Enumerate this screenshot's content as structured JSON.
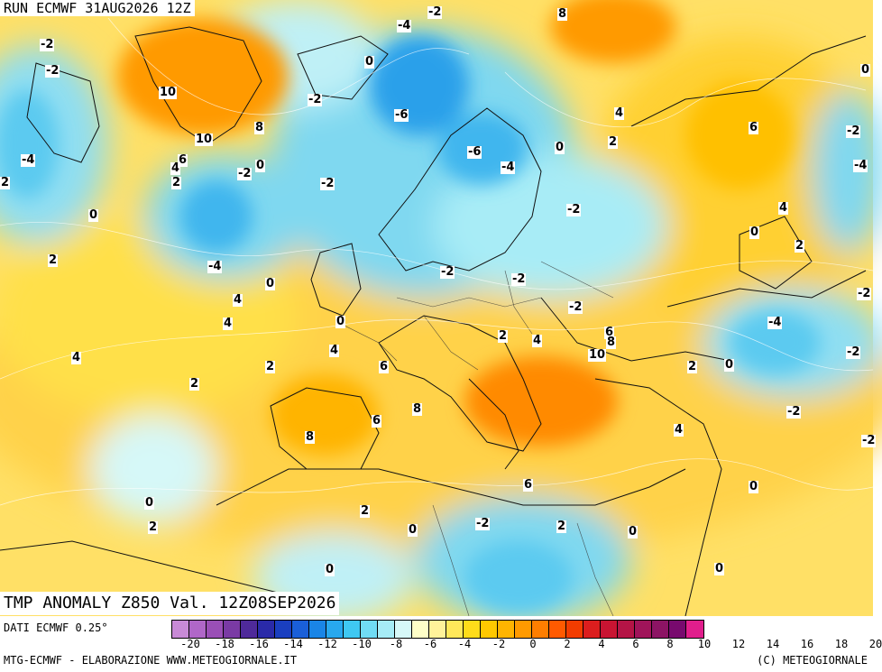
{
  "header": {
    "run_title": "RUN ECMWF 31AUG2026 12Z",
    "main_title": "TMP ANOMALY Z850 Val. 12Z08SEP2026"
  },
  "footer": {
    "data_source": "DATI ECMWF 0.25°",
    "credits": "MTG-ECMWF - ELABORAZIONE WWW.METEOGIORNALE.IT",
    "copyright": "(C) METEOGIORNALE"
  },
  "legend": {
    "tick_labels": [
      "-20",
      "-18",
      "-16",
      "-14",
      "-12",
      "-10",
      "-8",
      "-6",
      "-4",
      "-2",
      "0",
      "2",
      "4",
      "6",
      "8",
      "10",
      "12",
      "14",
      "16",
      "18",
      "20"
    ],
    "colors": [
      "#c88ad6",
      "#b067c8",
      "#9a4fb6",
      "#7a3aa4",
      "#4f2a9a",
      "#2a2aa8",
      "#1a3fc0",
      "#1a5fd8",
      "#1a85e6",
      "#28a8ee",
      "#3fc8f2",
      "#70dcf4",
      "#a6ecf6",
      "#d6f8f8",
      "#ffffc8",
      "#fff29a",
      "#ffe85a",
      "#ffdc1a",
      "#ffc800",
      "#ffb400",
      "#ff9a00",
      "#ff7e00",
      "#ff5a00",
      "#f23c00",
      "#dc1e1e",
      "#c81432",
      "#b41446",
      "#a0145a",
      "#8c1464",
      "#780a6e",
      "#e01e8c"
    ]
  },
  "map": {
    "contour_labels": [
      "-2",
      "8",
      "-2",
      "-4",
      "-2",
      "0",
      "10",
      "-2",
      "-6",
      "4",
      "10",
      "8",
      "6",
      "0",
      "2",
      "-4",
      "-6",
      "-4",
      "4",
      "6",
      "-2",
      "0",
      "2",
      "-2",
      "-2",
      "-4",
      "0",
      "-2",
      "4",
      "2",
      "0",
      "2",
      "-2",
      "-2",
      "0",
      "-4",
      "2",
      "0",
      "4",
      "4",
      "0",
      "-2",
      "6",
      "8",
      "-2",
      "2",
      "4",
      "4",
      "10",
      "-4",
      "-2",
      "6",
      "2",
      "8",
      "0",
      "2",
      "8",
      "-2",
      "6",
      "-2",
      "4",
      "2",
      "0",
      "2",
      "0",
      "0",
      "0",
      "-2",
      "0",
      "2",
      "0",
      "4",
      "6",
      "2"
    ]
  }
}
